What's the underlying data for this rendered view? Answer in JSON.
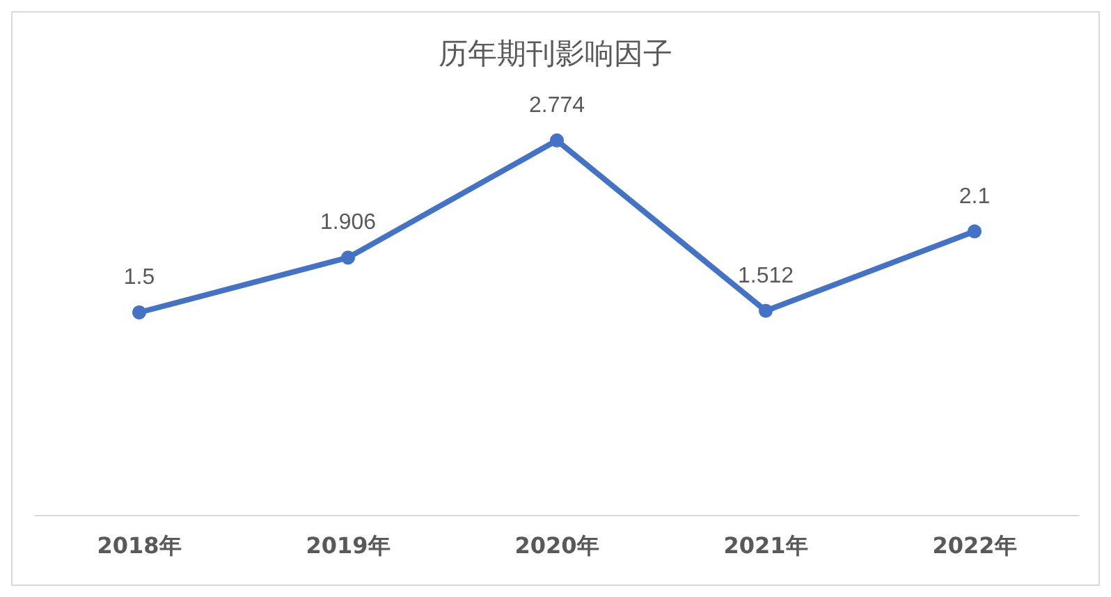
{
  "chart_data": {
    "type": "line",
    "title": "历年期刊影响因子",
    "categories": [
      "2018年",
      "2019年",
      "2020年",
      "2021年",
      "2022年"
    ],
    "series": [
      {
        "color": "#4472c4",
        "values": [
          1.5,
          1.906,
          2.774,
          1.512,
          2.1
        ]
      }
    ],
    "data_labels": true,
    "marker": "circle",
    "line_style": "solid"
  }
}
